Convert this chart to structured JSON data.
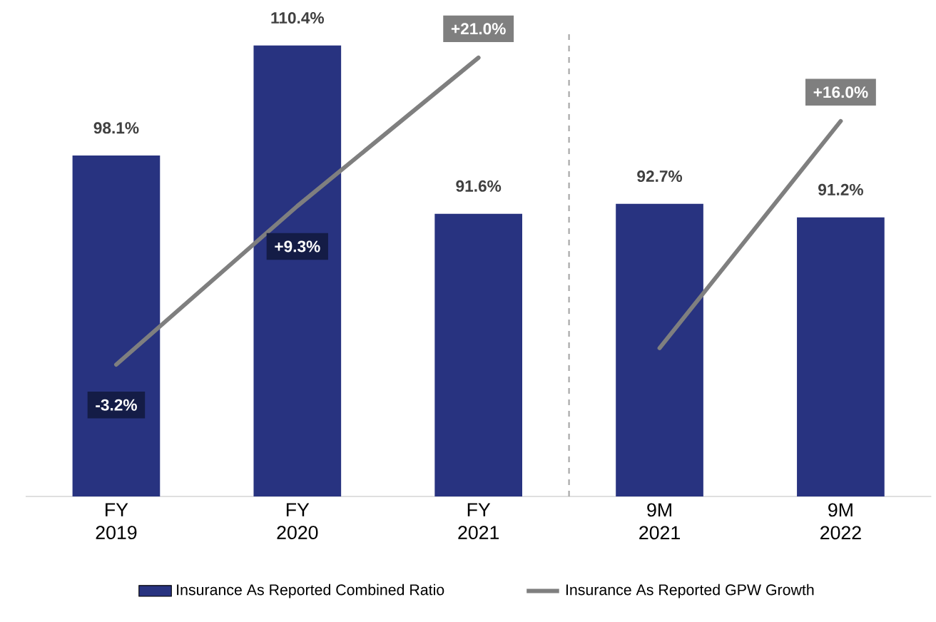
{
  "chart_data": {
    "type": "bar",
    "categories": [
      "FY 2019",
      "FY 2020",
      "FY 2021",
      "9M 2021",
      "9M 2022"
    ],
    "ylim": [
      60,
      112.3
    ],
    "y2lim": [
      -13.6,
      23.3
    ],
    "legend": "bottom",
    "series": [
      {
        "name": "Insurance As Reported Combined Ratio",
        "color": "#283380",
        "values": [
          98.1,
          110.4,
          91.6,
          92.7,
          91.2
        ],
        "value_labels": [
          "98.1%",
          "110.4%",
          "91.6%",
          "92.7%",
          "91.2%"
        ]
      },
      {
        "name": "Insurance As Reported GPW Growth",
        "type": "line",
        "axis": "y2",
        "color": "#7f7f7f",
        "values": [
          -3.2,
          9.3,
          21.0,
          null,
          null
        ],
        "value_labels": [
          "-3.2%",
          "+9.3%",
          "+21.0%",
          null,
          null
        ]
      },
      {
        "type": "line",
        "axis": "y2",
        "color": "#7f7f7f",
        "values": [
          null,
          null,
          null,
          -1.9,
          16.0
        ],
        "value_labels": [
          null,
          null,
          null,
          null,
          "+16.0%"
        ]
      }
    ]
  }
}
